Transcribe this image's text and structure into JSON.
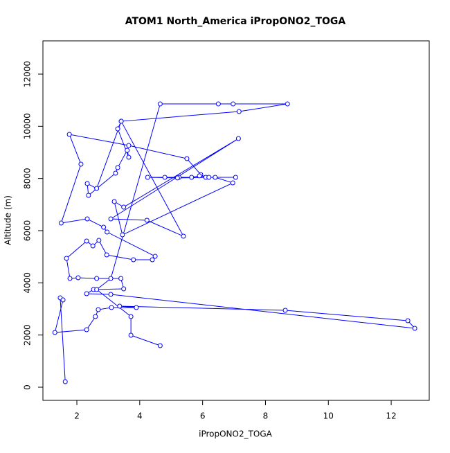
{
  "chart_data": {
    "type": "line",
    "title": "ATOM1 North_America iPropONO2_TOGA",
    "x_label": "iPropONO2_TOGA",
    "y_label": "Altitude (m)",
    "color": "#0000ff",
    "x": [
      1.63,
      1.47,
      1.56,
      1.3,
      2.31,
      2.59,
      2.68,
      3.1,
      3.89,
      3.36,
      8.63,
      12.53,
      12.75,
      3.08,
      2.31,
      2.53,
      3.49,
      3.4,
      2.63,
      2.04,
      1.78,
      1.67,
      2.31,
      2.51,
      2.7,
      2.95,
      3.8,
      4.4,
      4.49,
      2.96,
      2.85,
      2.33,
      1.5,
      2.13,
      1.76,
      3.65,
      5.5,
      5.94,
      6.1,
      7.05,
      6.2,
      5.9,
      5.65,
      5.25,
      4.8,
      4.25,
      5.2,
      6.4,
      6.96,
      3.45,
      3.19,
      3.49,
      7.14,
      3.08,
      4.23,
      5.39,
      3.41,
      2.63,
      2.33,
      2.37,
      3.23,
      3.3,
      3.6,
      3.65,
      3.3,
      3.41,
      7.16,
      8.7,
      6.97,
      6.5,
      4.65,
      3.08,
      2.63,
      3.72,
      3.72,
      4.65
    ],
    "values": [
      212,
      3425,
      3345,
      2097,
      2204,
      2708,
      2973,
      3053,
      3053,
      3106,
      2947,
      2549,
      2257,
      3557,
      3584,
      3743,
      3770,
      4168,
      4168,
      4194,
      4168,
      4938,
      5601,
      5415,
      5628,
      5070,
      4885,
      4885,
      5017,
      5946,
      6132,
      6451,
      6291,
      8548,
      9689,
      9264,
      8760,
      8150,
      8044,
      8044,
      8044,
      8100,
      8044,
      8044,
      8044,
      8044,
      8020,
      8044,
      7831,
      5840,
      7115,
      6902,
      9530,
      6451,
      6398,
      5787,
      10193,
      7619,
      7805,
      7353,
      8203,
      8415,
      9078,
      8813,
      9901,
      10193,
      10565,
      10857,
      10857,
      10857,
      10857,
      4168,
      3743,
      2708,
      1991,
      1593
    ],
    "xlim": [
      0.92,
      13.21
    ],
    "ylim": [
      -504,
      13274
    ],
    "xticks": [
      2,
      4,
      6,
      8,
      10,
      12
    ],
    "yticks": [
      0,
      2000,
      4000,
      6000,
      8000,
      10000,
      12000
    ]
  }
}
